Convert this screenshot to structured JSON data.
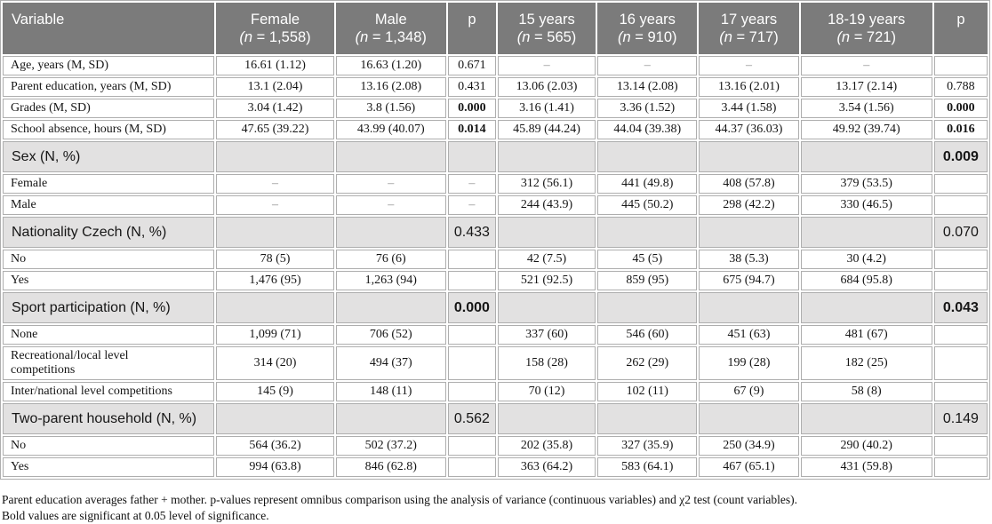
{
  "colors": {
    "header_bg": "#7b7b7b",
    "header_text": "#ffffff",
    "section_bg": "#e2e1e1",
    "border": "#aeaeae",
    "text": "#151515",
    "dash": "#8a8a8a"
  },
  "table": {
    "columns": [
      {
        "label": "Variable",
        "sub": ""
      },
      {
        "label": "Female",
        "sub": "(n = 1,558)"
      },
      {
        "label": "Male",
        "sub": "(n = 1,348)"
      },
      {
        "label": "p",
        "sub": ""
      },
      {
        "label": "15 years",
        "sub": "(n = 565)"
      },
      {
        "label": "16 years",
        "sub": "(n = 910)"
      },
      {
        "label": "17 years",
        "sub": "(n = 717)"
      },
      {
        "label": "18-19 years",
        "sub": "(n = 721)"
      },
      {
        "label": "p",
        "sub": ""
      }
    ],
    "rows": [
      {
        "type": "data",
        "bold": [],
        "cells": [
          "Age, years (M, SD)",
          "16.61 (1.12)",
          "16.63 (1.20)",
          "0.671",
          "–",
          "–",
          "–",
          "–",
          ""
        ]
      },
      {
        "type": "data",
        "bold": [],
        "cells": [
          "Parent education, years (M, SD)",
          "13.1 (2.04)",
          "13.16 (2.08)",
          "0.431",
          "13.06 (2.03)",
          "13.14 (2.08)",
          "13.16 (2.01)",
          "13.17 (2.14)",
          "0.788"
        ]
      },
      {
        "type": "data",
        "bold": [
          3,
          8
        ],
        "cells": [
          "Grades (M, SD)",
          "3.04 (1.42)",
          "3.8 (1.56)",
          "0.000",
          "3.16 (1.41)",
          "3.36 (1.52)",
          "3.44 (1.58)",
          "3.54 (1.56)",
          "0.000"
        ]
      },
      {
        "type": "data",
        "bold": [
          3,
          8
        ],
        "cells": [
          "School absence, hours (M, SD)",
          "47.65 (39.22)",
          "43.99 (40.07)",
          "0.014",
          "45.89 (44.24)",
          "44.04 (39.38)",
          "44.37 (36.03)",
          "49.92 (39.74)",
          "0.016"
        ]
      },
      {
        "type": "section",
        "bold": [
          8
        ],
        "cells": [
          "Sex (N, %)",
          "",
          "",
          "",
          "",
          "",
          "",
          "",
          "0.009"
        ]
      },
      {
        "type": "data",
        "bold": [],
        "cells": [
          "Female",
          "–",
          "–",
          "–",
          "312 (56.1)",
          "441 (49.8)",
          "408 (57.8)",
          "379 (53.5)",
          ""
        ]
      },
      {
        "type": "data",
        "bold": [],
        "cells": [
          "Male",
          "–",
          "–",
          "–",
          "244 (43.9)",
          "445 (50.2)",
          "298 (42.2)",
          "330 (46.5)",
          ""
        ]
      },
      {
        "type": "section",
        "bold": [],
        "cells": [
          "Nationality Czech (N, %)",
          "",
          "",
          "0.433",
          "",
          "",
          "",
          "",
          "0.070"
        ]
      },
      {
        "type": "data",
        "bold": [],
        "cells": [
          "No",
          "78 (5)",
          "76 (6)",
          "",
          "42 (7.5)",
          "45 (5)",
          "38 (5.3)",
          "30 (4.2)",
          ""
        ]
      },
      {
        "type": "data",
        "bold": [],
        "cells": [
          "Yes",
          "1,476 (95)",
          "1,263 (94)",
          "",
          "521 (92.5)",
          "859 (95)",
          "675 (94.7)",
          "684 (95.8)",
          ""
        ]
      },
      {
        "type": "section",
        "bold": [
          3,
          8
        ],
        "cells": [
          "Sport participation (N, %)",
          "",
          "",
          "0.000",
          "",
          "",
          "",
          "",
          "0.043"
        ]
      },
      {
        "type": "data",
        "bold": [],
        "cells": [
          "None",
          "1,099 (71)",
          "706 (52)",
          "",
          "337 (60)",
          "546 (60)",
          "451 (63)",
          "481 (67)",
          ""
        ]
      },
      {
        "type": "data",
        "bold": [],
        "cells": [
          "Recreational/local level\ncompetitions",
          "314 (20)",
          "494 (37)",
          "",
          "158 (28)",
          "262 (29)",
          "199 (28)",
          "182 (25)",
          ""
        ]
      },
      {
        "type": "data",
        "bold": [],
        "cells": [
          "Inter/national level competitions",
          "145 (9)",
          "148 (11)",
          "",
          "70 (12)",
          "102 (11)",
          "67 (9)",
          "58 (8)",
          ""
        ]
      },
      {
        "type": "section",
        "bold": [],
        "cells": [
          "Two-parent household (N, %)",
          "",
          "",
          "0.562",
          "",
          "",
          "",
          "",
          "0.149"
        ]
      },
      {
        "type": "data",
        "bold": [],
        "cells": [
          "No",
          "564 (36.2)",
          "502 (37.2)",
          "",
          "202 (35.8)",
          "327 (35.9)",
          "250 (34.9)",
          "290 (40.2)",
          ""
        ]
      },
      {
        "type": "data",
        "bold": [],
        "cells": [
          "Yes",
          "994 (63.8)",
          "846 (62.8)",
          "",
          "363 (64.2)",
          "583 (64.1)",
          "467 (65.1)",
          "431 (59.8)",
          ""
        ]
      }
    ]
  },
  "footnotes": {
    "line1": "Parent education averages father + mother. p-values represent omnibus comparison using the analysis of variance (continuous variables) and χ2 test (count variables).",
    "line2": "Bold values are significant at 0.05 level of significance."
  }
}
